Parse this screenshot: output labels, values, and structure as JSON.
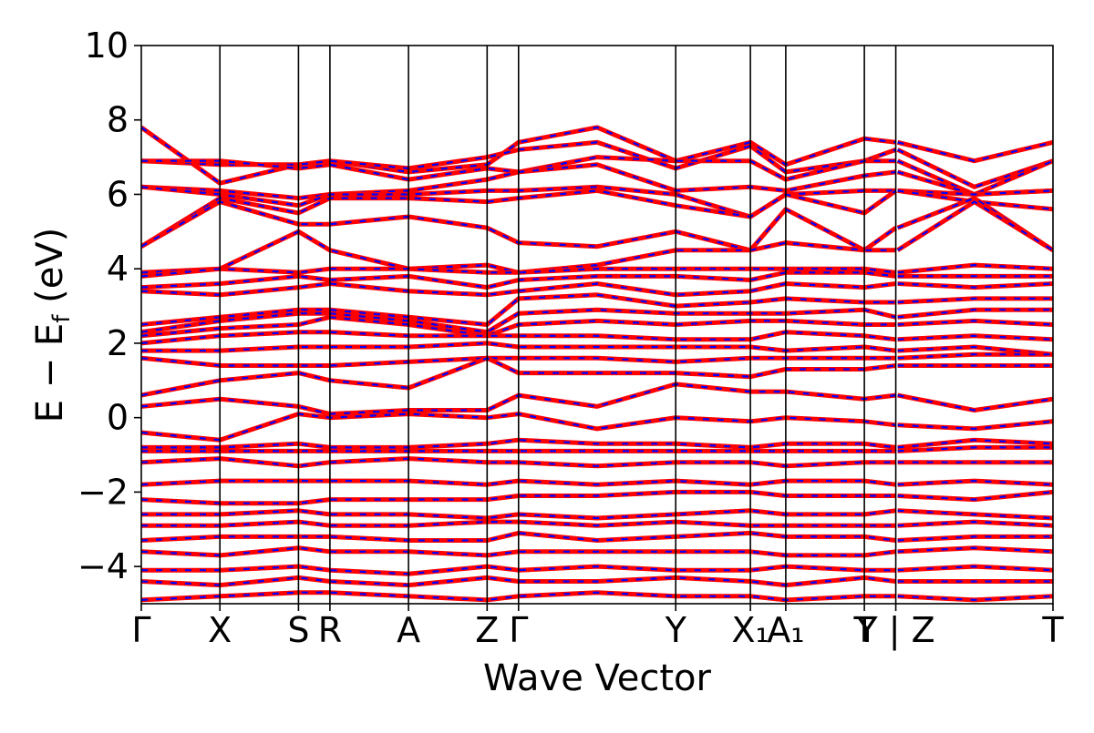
{
  "chart_data": {
    "type": "line",
    "title": "",
    "xlabel": "Wave Vector",
    "ylabel_main": "E − E",
    "ylabel_sub": "f",
    "ylabel_unit": " (eV)",
    "ylim": [
      -5,
      10
    ],
    "yticks": [
      -4,
      -2,
      0,
      2,
      4,
      6,
      8,
      10
    ],
    "ytick_labels": [
      "−4",
      "−2",
      "0",
      "2",
      "4",
      "6",
      "8",
      "10"
    ],
    "grid": false,
    "kpath_segments": [
      [
        0,
        6.5
      ],
      [
        6.5,
        12.5
      ],
      [
        12.5,
        15.5
      ]
    ],
    "kpoints": [
      {
        "k": 0.0,
        "label": "Γ"
      },
      {
        "k": 1.0,
        "label": "X"
      },
      {
        "k": 2.0,
        "label": "S"
      },
      {
        "k": 2.4,
        "label": "R"
      },
      {
        "k": 3.4,
        "label": "A"
      },
      {
        "k": 4.4,
        "label": "Z"
      },
      {
        "k": 4.8,
        "label": "Γ"
      },
      {
        "k": 6.8,
        "label": "Y"
      },
      {
        "k": 7.75,
        "label": "X₁"
      },
      {
        "k": 8.2,
        "label": "A₁"
      },
      {
        "k": 9.2,
        "label": "T"
      },
      {
        "k": 9.6,
        "label": "Y | Z"
      },
      {
        "k": 11.6,
        "label": "T"
      }
    ],
    "series": [
      {
        "style": "solid",
        "color": "#ff0000"
      },
      {
        "style": "dashed",
        "color": "#0000ff"
      }
    ],
    "bands": [
      [
        7.8,
        6.3,
        6.8,
        6.9,
        6.6,
        6.8,
        7.4,
        7.8,
        6.9,
        7.4,
        6.8,
        7.5,
        7.4,
        6.9,
        7.4
      ],
      [
        6.9,
        6.8,
        6.8,
        6.9,
        6.7,
        7.0,
        7.2,
        7.4,
        6.7,
        7.3,
        6.6,
        6.9,
        7.2,
        6.2,
        6.9
      ],
      [
        6.9,
        6.9,
        6.7,
        6.8,
        6.4,
        6.7,
        6.6,
        7.0,
        6.9,
        6.9,
        6.4,
        6.9,
        6.9,
        6.0,
        6.9
      ],
      [
        6.2,
        6.1,
        5.9,
        6.0,
        6.1,
        6.4,
        6.6,
        6.8,
        6.1,
        6.2,
        6.1,
        6.5,
        6.6,
        6.0,
        6.1
      ],
      [
        6.2,
        6.0,
        5.7,
        6.0,
        6.0,
        6.1,
        6.1,
        6.2,
        6.0,
        5.4,
        6.0,
        6.1,
        6.1,
        6.0,
        6.1
      ],
      [
        4.6,
        5.9,
        5.5,
        5.9,
        5.9,
        5.8,
        5.9,
        6.1,
        5.7,
        5.4,
        6.0,
        5.5,
        6.1,
        5.8,
        5.6
      ],
      [
        4.6,
        5.8,
        5.2,
        5.2,
        5.4,
        5.1,
        4.7,
        4.6,
        5.0,
        4.5,
        5.6,
        4.5,
        5.1,
        5.9,
        4.5
      ],
      [
        3.9,
        4.0,
        5.0,
        4.5,
        4.0,
        4.1,
        3.9,
        4.1,
        4.5,
        4.5,
        4.7,
        4.5,
        4.5,
        5.8,
        4.5
      ],
      [
        3.8,
        4.0,
        3.9,
        4.0,
        4.0,
        3.9,
        3.9,
        4.0,
        4.0,
        4.0,
        4.0,
        4.0,
        3.9,
        4.1,
        4.0
      ],
      [
        3.5,
        3.6,
        3.8,
        3.7,
        3.8,
        3.5,
        3.7,
        3.8,
        3.8,
        3.7,
        3.9,
        3.9,
        3.8,
        3.8,
        3.8
      ],
      [
        3.4,
        3.3,
        3.5,
        3.6,
        3.4,
        3.3,
        3.4,
        3.6,
        3.3,
        3.4,
        3.6,
        3.5,
        3.6,
        3.5,
        3.6
      ],
      [
        2.5,
        2.7,
        2.9,
        2.9,
        2.7,
        2.5,
        3.2,
        3.3,
        3.0,
        3.1,
        3.2,
        3.1,
        3.1,
        3.2,
        3.2
      ],
      [
        2.3,
        2.6,
        2.8,
        2.8,
        2.6,
        2.3,
        2.8,
        2.9,
        2.8,
        2.8,
        2.8,
        2.9,
        2.7,
        2.9,
        2.9
      ],
      [
        2.2,
        2.4,
        2.5,
        2.7,
        2.5,
        2.2,
        2.5,
        2.6,
        2.5,
        2.6,
        2.6,
        2.5,
        2.5,
        2.6,
        2.5
      ],
      [
        2.0,
        2.2,
        2.3,
        2.3,
        2.2,
        2.2,
        2.2,
        2.2,
        2.1,
        2.1,
        2.3,
        2.2,
        2.1,
        2.2,
        2.1
      ],
      [
        1.8,
        1.8,
        1.9,
        1.9,
        1.9,
        2.0,
        1.9,
        1.9,
        1.9,
        1.9,
        1.8,
        1.9,
        1.8,
        1.9,
        1.7
      ],
      [
        1.6,
        1.4,
        1.4,
        1.4,
        1.5,
        1.6,
        1.6,
        1.6,
        1.5,
        1.6,
        1.6,
        1.6,
        1.6,
        1.7,
        1.7
      ],
      [
        0.6,
        1.0,
        1.2,
        1.0,
        0.8,
        1.6,
        1.2,
        1.2,
        1.2,
        1.1,
        1.3,
        1.3,
        1.4,
        1.4,
        1.4
      ],
      [
        0.3,
        0.5,
        0.3,
        0.1,
        0.2,
        0.2,
        0.6,
        0.3,
        0.9,
        0.7,
        0.7,
        0.5,
        0.6,
        0.2,
        0.5
      ],
      [
        -0.4,
        -0.6,
        0.1,
        0.0,
        0.1,
        0.0,
        0.1,
        -0.3,
        0.0,
        -0.1,
        0.0,
        -0.1,
        -0.2,
        -0.3,
        -0.1
      ],
      [
        -0.8,
        -0.8,
        -0.7,
        -0.8,
        -0.8,
        -0.7,
        -0.6,
        -0.7,
        -0.7,
        -0.8,
        -0.7,
        -0.7,
        -0.8,
        -0.6,
        -0.7
      ],
      [
        -0.9,
        -0.9,
        -0.9,
        -0.9,
        -0.9,
        -0.9,
        -0.9,
        -0.9,
        -0.9,
        -0.9,
        -0.9,
        -0.9,
        -0.9,
        -0.8,
        -0.8
      ],
      [
        -1.2,
        -1.1,
        -1.3,
        -1.2,
        -1.1,
        -1.2,
        -1.2,
        -1.3,
        -1.2,
        -1.2,
        -1.3,
        -1.2,
        -1.2,
        -1.2,
        -1.2
      ],
      [
        -1.8,
        -1.7,
        -1.7,
        -1.7,
        -1.7,
        -1.8,
        -1.7,
        -1.8,
        -1.7,
        -1.8,
        -1.7,
        -1.7,
        -1.8,
        -1.7,
        -1.8
      ],
      [
        -2.2,
        -2.3,
        -2.3,
        -2.2,
        -2.2,
        -2.2,
        -2.1,
        -2.1,
        -2.0,
        -2.0,
        -2.1,
        -2.1,
        -2.1,
        -2.2,
        -2.0
      ],
      [
        -2.6,
        -2.6,
        -2.5,
        -2.6,
        -2.6,
        -2.7,
        -2.6,
        -2.7,
        -2.6,
        -2.5,
        -2.6,
        -2.6,
        -2.5,
        -2.6,
        -2.7
      ],
      [
        -2.9,
        -2.9,
        -2.8,
        -2.9,
        -2.9,
        -2.8,
        -2.8,
        -2.9,
        -2.8,
        -2.9,
        -2.9,
        -2.9,
        -2.9,
        -2.8,
        -2.9
      ],
      [
        -3.3,
        -3.2,
        -3.2,
        -3.2,
        -3.3,
        -3.3,
        -3.1,
        -3.3,
        -3.2,
        -3.1,
        -3.2,
        -3.2,
        -3.3,
        -3.2,
        -3.2
      ],
      [
        -3.6,
        -3.7,
        -3.5,
        -3.6,
        -3.6,
        -3.7,
        -3.6,
        -3.6,
        -3.6,
        -3.6,
        -3.7,
        -3.7,
        -3.6,
        -3.5,
        -3.6
      ],
      [
        -4.1,
        -4.1,
        -4.0,
        -4.1,
        -4.2,
        -4.0,
        -4.1,
        -4.0,
        -4.1,
        -4.1,
        -4.0,
        -4.1,
        -4.1,
        -4.0,
        -4.1
      ],
      [
        -4.4,
        -4.5,
        -4.3,
        -4.4,
        -4.5,
        -4.3,
        -4.4,
        -4.4,
        -4.3,
        -4.4,
        -4.5,
        -4.3,
        -4.4,
        -4.4,
        -4.4
      ],
      [
        -4.9,
        -4.8,
        -4.7,
        -4.7,
        -4.8,
        -4.9,
        -4.8,
        -4.7,
        -4.8,
        -4.8,
        -4.9,
        -4.8,
        -4.8,
        -4.9,
        -4.8
      ]
    ]
  }
}
